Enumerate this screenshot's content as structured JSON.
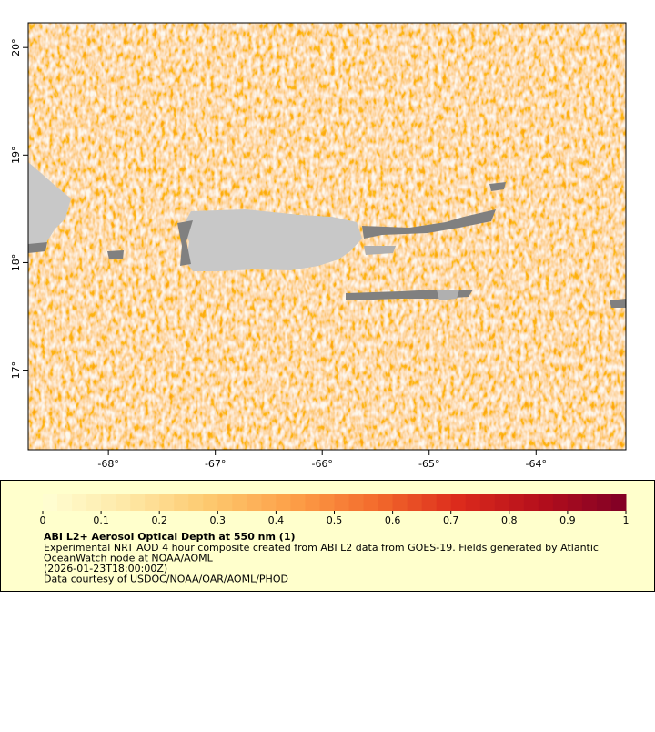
{
  "chart_data": {
    "type": "map",
    "xlim": [
      -68.75,
      -63.16
    ],
    "ylim": [
      16.26,
      20.23
    ],
    "xticks": [
      {
        "value": -68,
        "label": "-68°"
      },
      {
        "value": -67,
        "label": "-67°"
      },
      {
        "value": -66,
        "label": "-66°"
      },
      {
        "value": -65,
        "label": "-65°"
      },
      {
        "value": -64,
        "label": "-64°"
      }
    ],
    "yticks": [
      {
        "value": 17,
        "label": "17°"
      },
      {
        "value": 18,
        "label": "18°"
      },
      {
        "value": 19,
        "label": "19°"
      },
      {
        "value": 20,
        "label": "20°"
      }
    ],
    "colorbar": {
      "lim": [
        0,
        1
      ],
      "ticks": [
        0,
        0.1,
        0.2,
        0.3,
        0.4,
        0.5,
        0.6,
        0.7,
        0.8,
        0.9,
        1
      ],
      "colors": [
        "#ffffd4",
        "#fee8a6",
        "#fdc96e",
        "#fd9f48",
        "#f36b2c",
        "#dc2a1c",
        "#b30e1c",
        "#800026"
      ]
    },
    "title": "ABI L2+ Aerosol Optical Depth at 550 nm (1)",
    "description": [
      "Experimental NRT AOD 4 hour composite created from ABI L2 data from GOES-19. Fields generated by Atlantic",
      "OceanWatch node at NOAA/AOML",
      "(2026-01-23T18:00:00Z)",
      "Data courtesy of USDOC/NOAA/OAR/AOML/PHOD"
    ]
  }
}
